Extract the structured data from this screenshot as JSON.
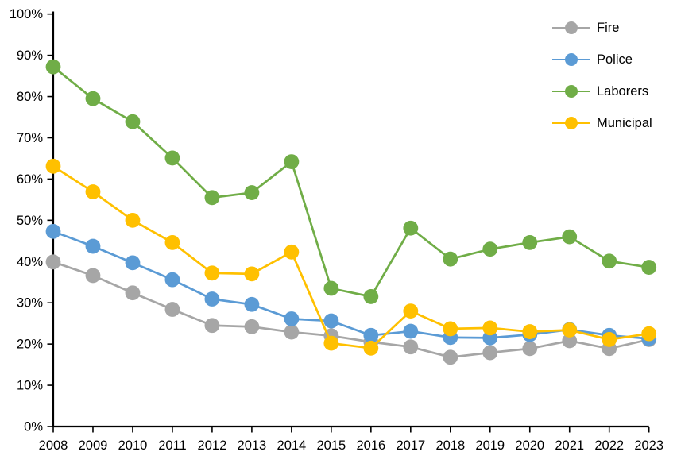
{
  "chart_data": {
    "type": "line",
    "title": "",
    "xlabel": "",
    "ylabel": "",
    "x": [
      "2008",
      "2009",
      "2010",
      "2011",
      "2012",
      "2013",
      "2014",
      "2015",
      "2016",
      "2017",
      "2018",
      "2019",
      "2020",
      "2021",
      "2022",
      "2023"
    ],
    "ylim": [
      0,
      100
    ],
    "y_tick_step": 10,
    "y_tick_labels": [
      "0%",
      "10%",
      "20%",
      "30%",
      "40%",
      "50%",
      "60%",
      "70%",
      "80%",
      "90%",
      "100%"
    ],
    "grid": false,
    "legend_position": "top-right",
    "marker": "circle",
    "series": [
      {
        "name": "Fire",
        "color": "#A6A6A6",
        "values": [
          39.9,
          36.6,
          32.4,
          28.4,
          24.5,
          24.2,
          22.9,
          22.0,
          20.5,
          19.3,
          16.8,
          17.9,
          18.9,
          20.8,
          18.9,
          21.1
        ]
      },
      {
        "name": "Police",
        "color": "#5B9BD5",
        "values": [
          47.3,
          43.7,
          39.7,
          35.6,
          30.9,
          29.6,
          26.1,
          25.6,
          22.1,
          23.1,
          21.6,
          21.5,
          22.3,
          23.5,
          22.1,
          21.3
        ]
      },
      {
        "name": "Laborers",
        "color": "#70AD47",
        "values": [
          87.2,
          79.5,
          73.9,
          65.1,
          55.5,
          56.7,
          64.2,
          33.5,
          31.5,
          48.1,
          40.6,
          43.0,
          44.6,
          46.0,
          40.1,
          38.6
        ]
      },
      {
        "name": "Municipal",
        "color": "#FFC000",
        "values": [
          63.1,
          56.9,
          50.0,
          44.6,
          37.2,
          37.0,
          42.3,
          20.2,
          19.0,
          28.0,
          23.7,
          23.9,
          23.0,
          23.4,
          21.1,
          22.5
        ]
      }
    ]
  },
  "colors": {
    "axis": "#000000",
    "background": "#FFFFFF",
    "label_text": "#000000"
  }
}
